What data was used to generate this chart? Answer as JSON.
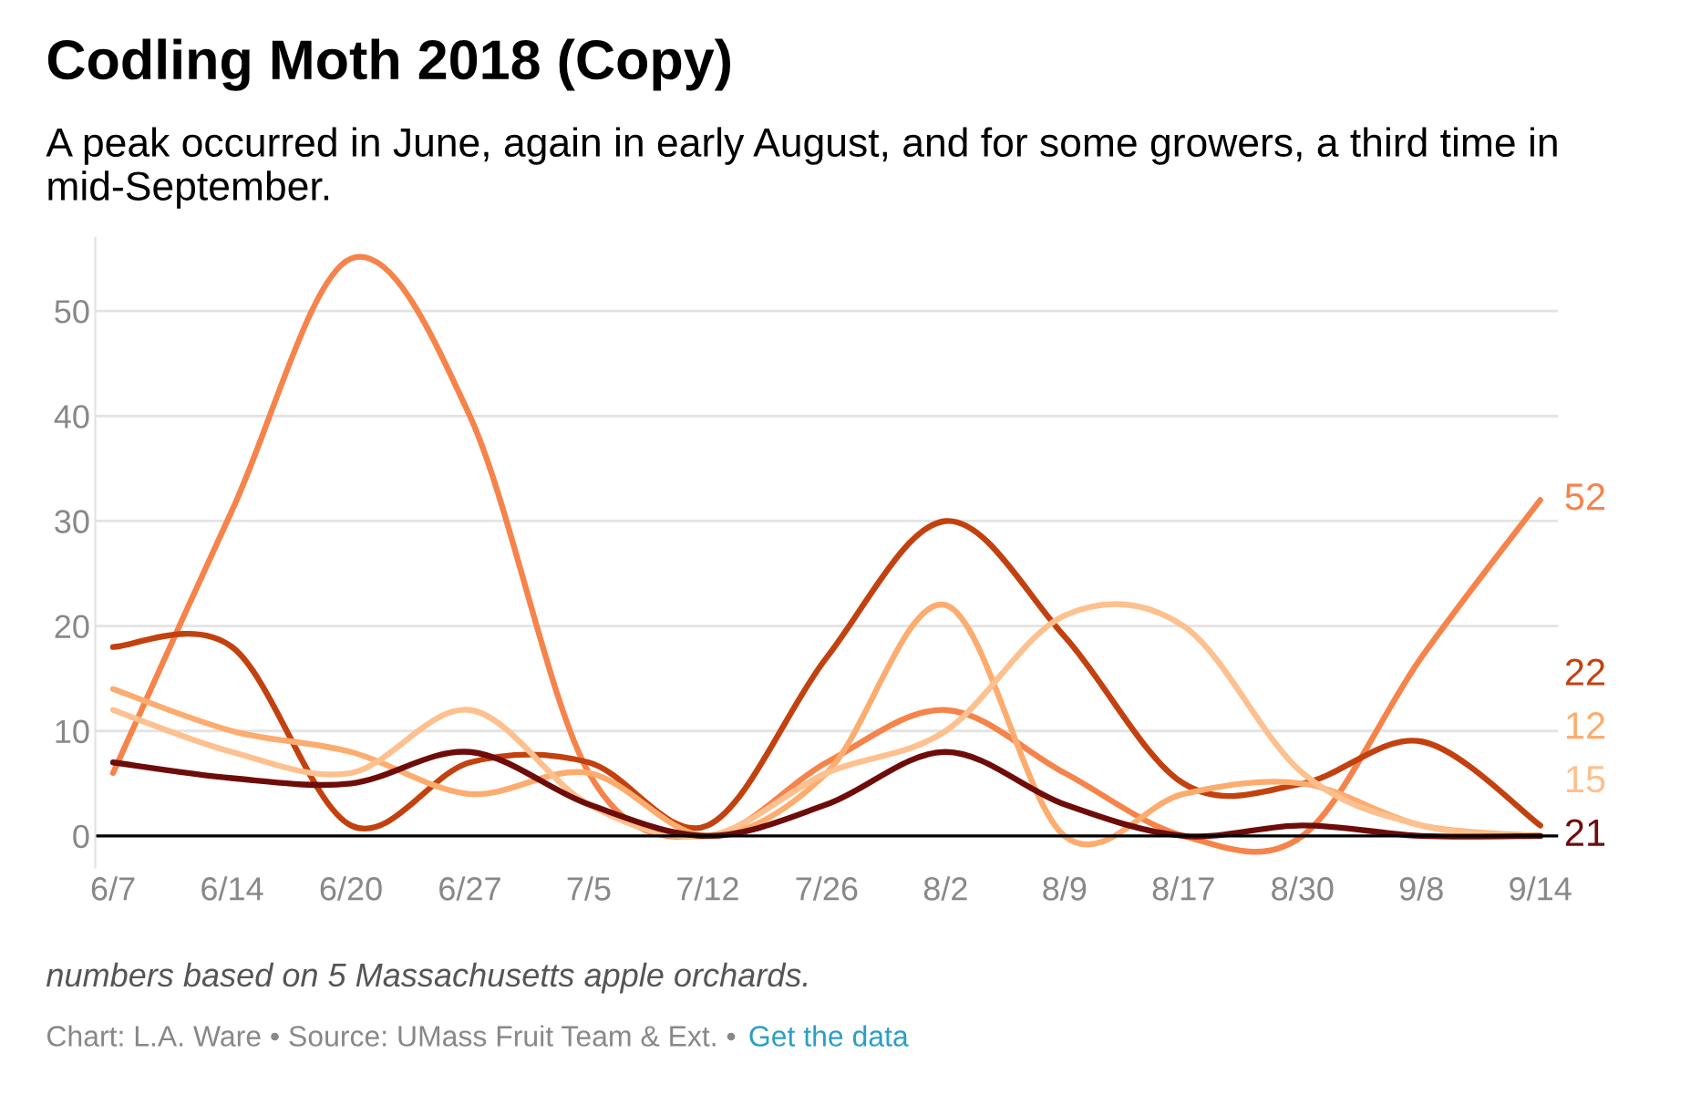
{
  "chart_data": {
    "type": "line",
    "title": "Codling Moth 2018 (Copy)",
    "subtitle": "A peak occurred in June, again in early August, and for some growers, a third time in mid-September.",
    "categories": [
      "6/7",
      "6/14",
      "6/20",
      "6/27",
      "7/5",
      "7/12",
      "7/26",
      "8/2",
      "8/9",
      "8/17",
      "8/30",
      "9/8",
      "9/14"
    ],
    "series": [
      {
        "name": "52",
        "color": "#f6834a",
        "values": [
          6,
          31,
          55,
          40,
          6,
          0,
          7,
          12,
          6,
          0,
          0,
          17,
          32
        ]
      },
      {
        "name": "22",
        "color": "#c2410f",
        "values": [
          18,
          18,
          1,
          7,
          7,
          1,
          17,
          30,
          19,
          5,
          5,
          9,
          1
        ]
      },
      {
        "name": "12",
        "color": "#fcac6e",
        "values": [
          14,
          10,
          8,
          4,
          6,
          0,
          6,
          22,
          0,
          4,
          5,
          1,
          0
        ]
      },
      {
        "name": "15",
        "color": "#fdc08e",
        "values": [
          12,
          8,
          6,
          12,
          3,
          0,
          6,
          10,
          21,
          20,
          6,
          1,
          0
        ]
      },
      {
        "name": "21",
        "color": "#6e0c0a",
        "values": [
          7,
          5.5,
          5,
          8,
          3,
          0,
          3,
          8,
          3,
          0,
          1,
          0,
          0
        ]
      }
    ],
    "ylim": [
      -3,
      57
    ],
    "yticks": [
      0,
      10,
      20,
      30,
      40,
      50
    ],
    "grid": "y",
    "legend": false,
    "marker": "none",
    "line_style": "solid",
    "annotations": [
      "numbers based on 5 Massachusetts apple orchards.",
      "Chart: L.A. Ware • Source: UMass Fruit Team & Ext. •",
      "Get the data"
    ]
  }
}
